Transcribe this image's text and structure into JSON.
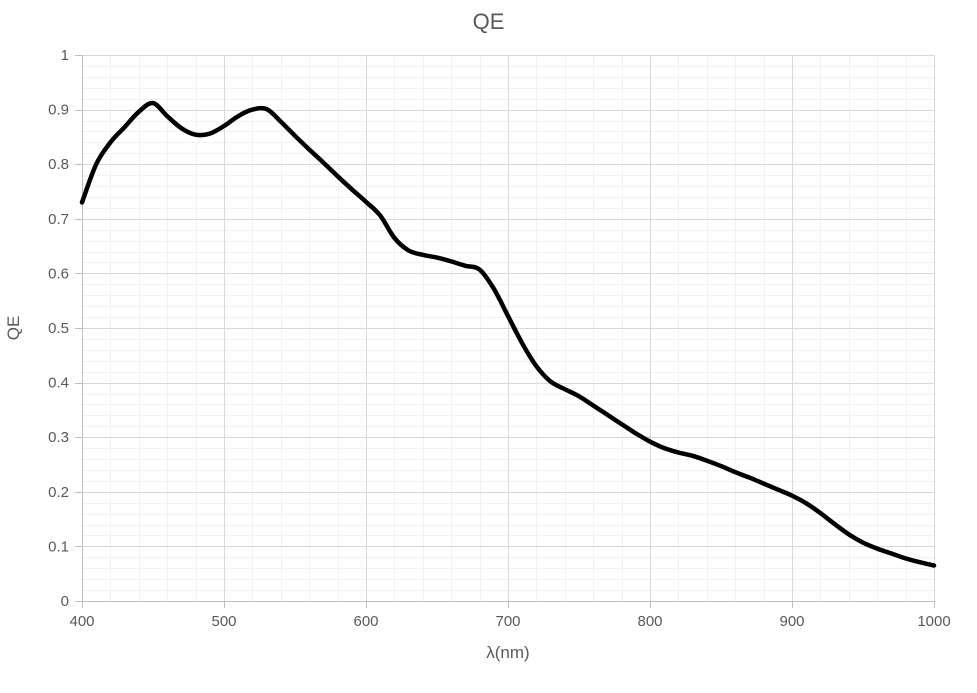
{
  "chart_data": {
    "type": "line",
    "title": "QE",
    "xlabel": "λ(nm)",
    "ylabel": "QE",
    "xlim": [
      400,
      1000
    ],
    "ylim": [
      0,
      1
    ],
    "x_major_step": 100,
    "x_minor_step": 20,
    "y_major_step": 0.1,
    "y_minor_step": 0.02,
    "x_ticks": [
      "400",
      "500",
      "600",
      "700",
      "800",
      "900",
      "1000"
    ],
    "y_ticks": [
      "0",
      "0.1",
      "0.2",
      "0.3",
      "0.4",
      "0.5",
      "0.6",
      "0.7",
      "0.8",
      "0.9",
      "1"
    ],
    "grid": "major+minor",
    "legend": "none",
    "colors": {
      "line": "#000000",
      "major_grid": "#d9d9d9",
      "minor_grid": "#f2f2f2",
      "axis": "#bfbfbf",
      "text": "#595959",
      "background": "#ffffff"
    },
    "line_width": 4.5,
    "series": [
      {
        "name": "QE",
        "x": [
          400,
          410,
          420,
          430,
          440,
          450,
          460,
          470,
          480,
          490,
          500,
          510,
          520,
          530,
          540,
          550,
          560,
          570,
          580,
          590,
          600,
          610,
          620,
          630,
          640,
          650,
          660,
          670,
          680,
          690,
          700,
          710,
          720,
          730,
          740,
          750,
          760,
          770,
          780,
          790,
          800,
          810,
          820,
          830,
          840,
          850,
          860,
          870,
          880,
          890,
          900,
          910,
          920,
          930,
          940,
          950,
          960,
          970,
          980,
          990,
          1000
        ],
        "y": [
          0.73,
          0.8,
          0.84,
          0.868,
          0.896,
          0.912,
          0.888,
          0.866,
          0.854,
          0.856,
          0.87,
          0.888,
          0.9,
          0.901,
          0.878,
          0.852,
          0.827,
          0.803,
          0.778,
          0.754,
          0.731,
          0.706,
          0.665,
          0.642,
          0.634,
          0.629,
          0.622,
          0.614,
          0.607,
          0.572,
          0.522,
          0.472,
          0.43,
          0.402,
          0.388,
          0.375,
          0.358,
          0.341,
          0.324,
          0.307,
          0.292,
          0.28,
          0.272,
          0.266,
          0.257,
          0.247,
          0.236,
          0.226,
          0.215,
          0.204,
          0.193,
          0.179,
          0.161,
          0.141,
          0.122,
          0.107,
          0.096,
          0.087,
          0.078,
          0.071,
          0.065
        ]
      }
    ]
  }
}
